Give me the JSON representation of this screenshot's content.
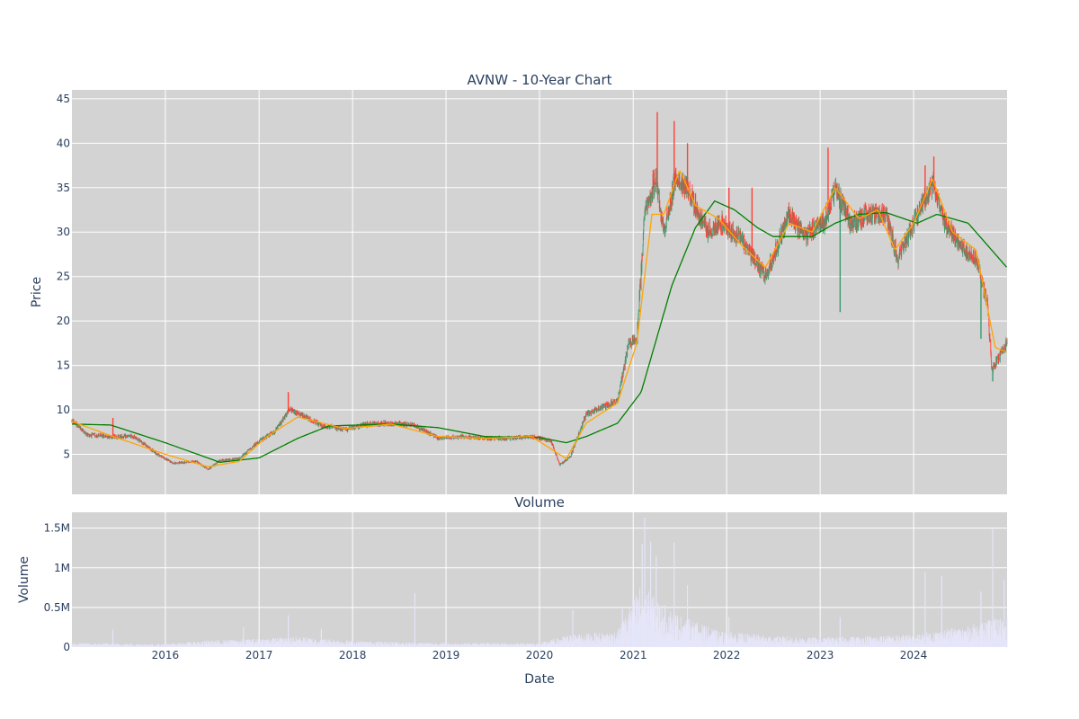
{
  "chart_data": [
    {
      "type": "candlestick",
      "title": "AVNW - 10-Year Chart",
      "ylabel": "Price",
      "xlabel": "",
      "xlim": [
        "2015-01-01",
        "2024-12-31"
      ],
      "ylim": [
        0.5,
        46
      ],
      "y_ticks": [
        5,
        10,
        15,
        20,
        25,
        30,
        35,
        40,
        45
      ],
      "grid": true,
      "legend": "none",
      "colors": {
        "increasing": "#3d9970",
        "decreasing": "#ff4136",
        "sma_short": "#ffa500",
        "sma_long": "#008000",
        "plot_bg": "#d3d3d3",
        "grid": "#ffffff"
      },
      "price_anchors": [
        [
          "2015-01-01",
          8.8
        ],
        [
          "2015-03-01",
          7.2
        ],
        [
          "2015-06-01",
          7.0
        ],
        [
          "2015-09-01",
          7.0
        ],
        [
          "2015-12-01",
          5.0
        ],
        [
          "2016-02-01",
          4.0
        ],
        [
          "2016-05-01",
          4.2
        ],
        [
          "2016-06-15",
          3.3
        ],
        [
          "2016-08-01",
          4.3
        ],
        [
          "2016-10-15",
          4.5
        ],
        [
          "2017-01-01",
          6.5
        ],
        [
          "2017-03-01",
          7.5
        ],
        [
          "2017-05-01",
          10.0
        ],
        [
          "2017-07-01",
          9.2
        ],
        [
          "2017-09-01",
          8.2
        ],
        [
          "2017-12-01",
          7.8
        ],
        [
          "2018-03-01",
          8.4
        ],
        [
          "2018-06-01",
          8.5
        ],
        [
          "2018-09-01",
          8.3
        ],
        [
          "2018-12-01",
          6.8
        ],
        [
          "2019-03-01",
          7.0
        ],
        [
          "2019-06-01",
          6.8
        ],
        [
          "2019-09-01",
          6.8
        ],
        [
          "2019-12-01",
          7.0
        ],
        [
          "2020-02-15",
          6.5
        ],
        [
          "2020-03-20",
          3.8
        ],
        [
          "2020-05-01",
          4.8
        ],
        [
          "2020-07-01",
          9.5
        ],
        [
          "2020-09-01",
          10.3
        ],
        [
          "2020-11-01",
          11.0
        ],
        [
          "2020-12-15",
          17.5
        ],
        [
          "2021-01-15",
          18.0
        ],
        [
          "2021-02-15",
          32.0
        ],
        [
          "2021-04-01",
          36.0
        ],
        [
          "2021-05-01",
          30.0
        ],
        [
          "2021-06-15",
          36.0
        ],
        [
          "2021-08-01",
          35.0
        ],
        [
          "2021-10-15",
          30.0
        ],
        [
          "2021-12-15",
          31.0
        ],
        [
          "2022-03-01",
          29.0
        ],
        [
          "2022-06-01",
          25.0
        ],
        [
          "2022-09-01",
          32.0
        ],
        [
          "2022-11-01",
          29.5
        ],
        [
          "2023-01-15",
          31.0
        ],
        [
          "2023-03-01",
          35.0
        ],
        [
          "2023-05-01",
          31.0
        ],
        [
          "2023-07-01",
          32.0
        ],
        [
          "2023-09-15",
          32.0
        ],
        [
          "2023-11-01",
          27.0
        ],
        [
          "2024-01-01",
          31.0
        ],
        [
          "2024-03-15",
          35.5
        ],
        [
          "2024-05-01",
          31.0
        ],
        [
          "2024-07-01",
          28.5
        ],
        [
          "2024-09-01",
          27.0
        ],
        [
          "2024-10-15",
          22.0
        ],
        [
          "2024-11-01",
          14.5
        ],
        [
          "2024-12-31",
          17.5
        ]
      ],
      "sma_short_anchors": [
        [
          "2015-01-01",
          8.7
        ],
        [
          "2015-06-01",
          7.1
        ],
        [
          "2016-01-01",
          5.0
        ],
        [
          "2016-06-15",
          3.6
        ],
        [
          "2016-10-15",
          4.2
        ],
        [
          "2017-02-01",
          7.0
        ],
        [
          "2017-06-01",
          9.2
        ],
        [
          "2017-12-01",
          7.9
        ],
        [
          "2018-06-01",
          8.4
        ],
        [
          "2018-12-01",
          7.0
        ],
        [
          "2019-06-01",
          6.8
        ],
        [
          "2019-12-01",
          7.0
        ],
        [
          "2020-04-15",
          4.5
        ],
        [
          "2020-07-01",
          8.5
        ],
        [
          "2020-11-01",
          10.8
        ],
        [
          "2021-01-15",
          17.5
        ],
        [
          "2021-03-15",
          32.0
        ],
        [
          "2021-05-01",
          32.0
        ],
        [
          "2021-07-01",
          37.0
        ],
        [
          "2021-09-01",
          33.0
        ],
        [
          "2021-12-01",
          31.5
        ],
        [
          "2022-03-01",
          28.5
        ],
        [
          "2022-06-01",
          26.0
        ],
        [
          "2022-09-01",
          31.0
        ],
        [
          "2022-12-01",
          30.0
        ],
        [
          "2023-03-01",
          35.0
        ],
        [
          "2023-06-01",
          31.5
        ],
        [
          "2023-08-15",
          32.5
        ],
        [
          "2023-10-20",
          28.0
        ],
        [
          "2024-01-01",
          31.0
        ],
        [
          "2024-03-15",
          36.0
        ],
        [
          "2024-06-01",
          30.0
        ],
        [
          "2024-09-01",
          28.0
        ],
        [
          "2024-11-15",
          17.0
        ],
        [
          "2024-12-31",
          16.5
        ]
      ],
      "sma_long_anchors": [
        [
          "2015-01-01",
          8.4
        ],
        [
          "2015-06-01",
          8.3
        ],
        [
          "2016-01-01",
          6.3
        ],
        [
          "2016-08-01",
          4.1
        ],
        [
          "2017-01-01",
          4.6
        ],
        [
          "2017-06-01",
          6.8
        ],
        [
          "2017-10-01",
          8.2
        ],
        [
          "2018-06-01",
          8.4
        ],
        [
          "2018-12-01",
          8.0
        ],
        [
          "2019-06-01",
          7.0
        ],
        [
          "2020-01-01",
          6.9
        ],
        [
          "2020-04-15",
          6.3
        ],
        [
          "2020-07-01",
          7.0
        ],
        [
          "2020-11-01",
          8.5
        ],
        [
          "2021-02-01",
          12.0
        ],
        [
          "2021-06-01",
          24.0
        ],
        [
          "2021-09-01",
          30.5
        ],
        [
          "2021-11-15",
          33.5
        ],
        [
          "2022-02-01",
          32.5
        ],
        [
          "2022-05-01",
          30.5
        ],
        [
          "2022-07-01",
          29.5
        ],
        [
          "2022-09-01",
          29.5
        ],
        [
          "2022-12-01",
          29.5
        ],
        [
          "2023-03-01",
          31.0
        ],
        [
          "2023-06-01",
          32.0
        ],
        [
          "2023-09-15",
          32.2
        ],
        [
          "2024-01-15",
          31.0
        ],
        [
          "2024-04-01",
          32.0
        ],
        [
          "2024-06-01",
          31.5
        ],
        [
          "2024-08-01",
          31.0
        ],
        [
          "2024-10-01",
          29.0
        ],
        [
          "2024-12-31",
          26.0
        ]
      ],
      "spikes": [
        [
          "2015-06-10",
          9.1
        ],
        [
          "2017-04-25",
          12.0
        ],
        [
          "2021-03-20",
          37.0
        ],
        [
          "2021-04-05",
          43.5
        ],
        [
          "2021-06-10",
          42.5
        ],
        [
          "2021-08-01",
          40.0
        ],
        [
          "2022-01-10",
          35.0
        ],
        [
          "2022-04-10",
          35.0
        ],
        [
          "2023-02-01",
          39.5
        ],
        [
          "2023-03-20",
          21.0
        ],
        [
          "2024-02-15",
          37.5
        ],
        [
          "2024-03-20",
          38.5
        ],
        [
          "2024-09-20",
          18.0
        ],
        [
          "2024-11-05",
          13.2
        ]
      ]
    },
    {
      "type": "bar",
      "title": "Volume",
      "ylabel": "Volume",
      "xlabel": "Date",
      "xlim": [
        "2015-01-01",
        "2024-12-31"
      ],
      "ylim": [
        0,
        1700000
      ],
      "y_ticks": [
        {
          "value": 0,
          "label": "0"
        },
        {
          "value": 500000,
          "label": "0.5M"
        },
        {
          "value": 1000000,
          "label": "1M"
        },
        {
          "value": 1500000,
          "label": "1.5M"
        }
      ],
      "x_ticks": [
        "2016",
        "2017",
        "2018",
        "2019",
        "2020",
        "2021",
        "2022",
        "2023",
        "2024"
      ],
      "grid": true,
      "colors": {
        "bars": "#e6e6fa",
        "plot_bg": "#d3d3d3",
        "grid": "#ffffff"
      },
      "volume_anchors": [
        [
          "2015-01-01",
          40000
        ],
        [
          "2016-01-01",
          30000
        ],
        [
          "2016-06-01",
          60000
        ],
        [
          "2017-01-01",
          80000
        ],
        [
          "2017-06-01",
          100000
        ],
        [
          "2018-01-01",
          60000
        ],
        [
          "2019-01-01",
          40000
        ],
        [
          "2020-01-01",
          40000
        ],
        [
          "2020-05-01",
          120000
        ],
        [
          "2020-11-01",
          150000
        ],
        [
          "2021-02-01",
          600000
        ],
        [
          "2021-04-01",
          450000
        ],
        [
          "2021-07-01",
          300000
        ],
        [
          "2021-12-01",
          150000
        ],
        [
          "2022-06-01",
          110000
        ],
        [
          "2023-01-01",
          90000
        ],
        [
          "2024-01-01",
          120000
        ],
        [
          "2024-08-01",
          200000
        ],
        [
          "2024-12-31",
          300000
        ]
      ],
      "volume_spikes": [
        [
          "2015-06-10",
          220000
        ],
        [
          "2016-11-01",
          250000
        ],
        [
          "2017-04-25",
          400000
        ],
        [
          "2017-09-01",
          230000
        ],
        [
          "2018-09-01",
          680000
        ],
        [
          "2020-05-10",
          470000
        ],
        [
          "2020-11-20",
          480000
        ],
        [
          "2021-02-05",
          1300000
        ],
        [
          "2021-02-15",
          1630000
        ],
        [
          "2021-03-10",
          1330000
        ],
        [
          "2021-04-01",
          1150000
        ],
        [
          "2021-06-10",
          1320000
        ],
        [
          "2021-08-01",
          780000
        ],
        [
          "2022-01-10",
          380000
        ],
        [
          "2023-03-20",
          380000
        ],
        [
          "2024-02-15",
          950000
        ],
        [
          "2024-04-20",
          900000
        ],
        [
          "2024-09-20",
          700000
        ],
        [
          "2024-11-05",
          1490000
        ],
        [
          "2024-12-20",
          850000
        ]
      ]
    }
  ]
}
